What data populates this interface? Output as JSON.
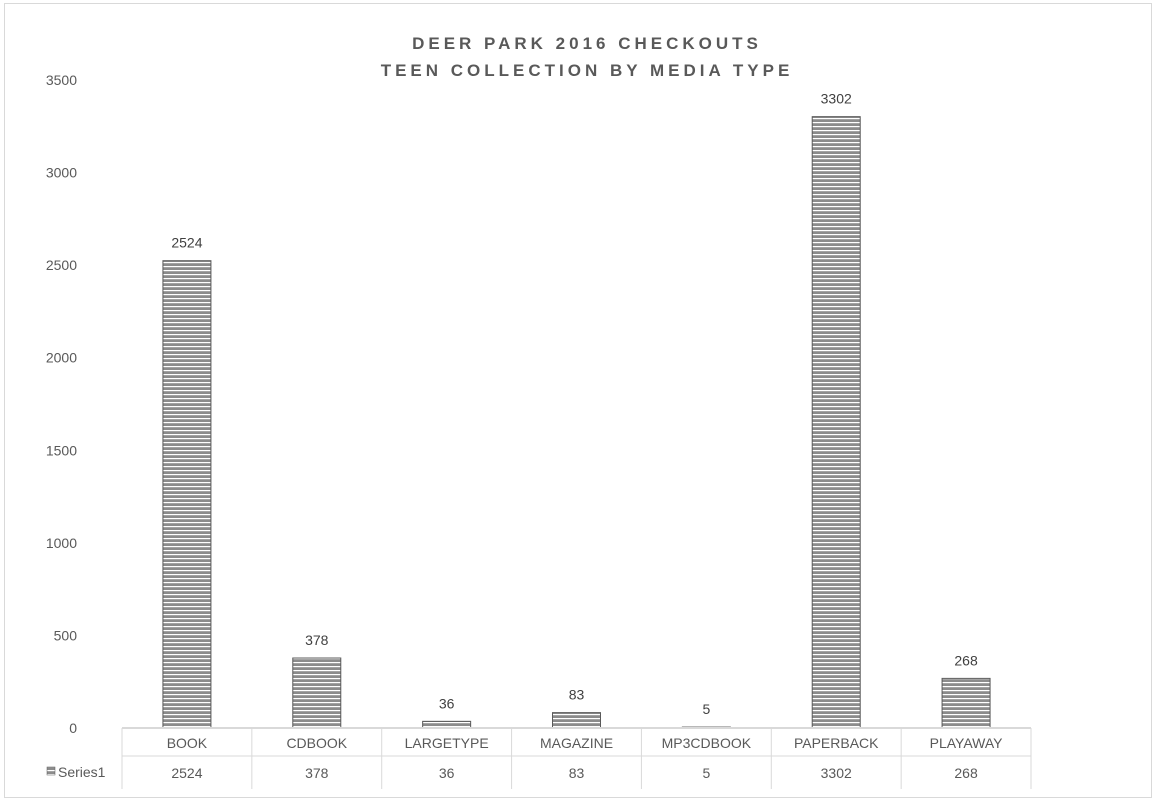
{
  "chart_data": {
    "type": "bar",
    "title_lines": [
      "DEER PARK 2016 CHECKOUTS",
      "TEEN COLLECTION BY MEDIA TYPE"
    ],
    "categories": [
      "BOOK",
      "CDBOOK",
      "LARGETYPE",
      "MAGAZINE",
      "MP3CDBOOK",
      "PAPERBACK",
      "PLAYAWAY"
    ],
    "series": [
      {
        "name": "Series1",
        "values": [
          2524,
          378,
          36,
          83,
          5,
          3302,
          268
        ]
      }
    ],
    "y_ticks": [
      "0",
      "500",
      "1000",
      "1500",
      "2000",
      "2500",
      "3000",
      "3500"
    ],
    "ylim": [
      0,
      3500
    ],
    "data_labels": [
      "2524",
      "378",
      "36",
      "83",
      "5",
      "3302",
      "268"
    ],
    "table_values": [
      "2524",
      "378",
      "36",
      "83",
      "5",
      "3302",
      "268"
    ],
    "legend_in_table": true,
    "gridlines": false,
    "colors": {
      "bar_fill": "#8c8c8c",
      "bar_stripe": "#ffffff",
      "bar_edge": "#595959",
      "axis": "#d9d9d9",
      "text": "#595959"
    }
  }
}
